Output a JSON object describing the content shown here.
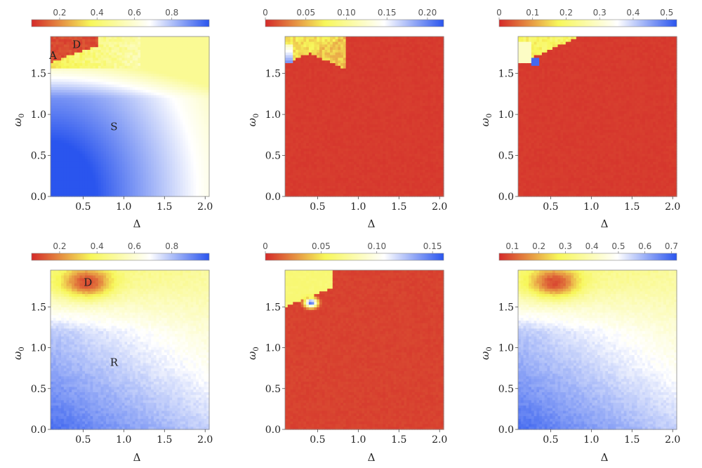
{
  "colors": {
    "colormap": [
      "#d42a2a",
      "#f7f75a",
      "#ffffff",
      "#2a55ee"
    ],
    "frame": "#888888"
  },
  "chart_data": [
    {
      "type": "heatmap",
      "row": 0,
      "col": 0,
      "xlabel": "Δ",
      "ylabel": "ω0",
      "xlim": [
        0.1,
        2.05
      ],
      "ylim": [
        0.0,
        1.95
      ],
      "xticks": [
        0.5,
        1.0,
        1.5,
        2.0
      ],
      "yticks": [
        0.0,
        0.5,
        1.0,
        1.5
      ],
      "colorbar": {
        "range": [
          0.05,
          1.0
        ],
        "ticks": [
          0.2,
          0.4,
          0.6,
          0.8
        ],
        "labels": [
          "0.2",
          "0.4",
          "0.6",
          "0.8"
        ]
      },
      "field": "stability",
      "annotations": [
        {
          "text": "A",
          "x": 0.13,
          "y": 1.72
        },
        {
          "text": "D",
          "x": 0.42,
          "y": 1.85
        },
        {
          "text": "S",
          "x": 0.88,
          "y": 0.85
        }
      ]
    },
    {
      "type": "heatmap",
      "row": 0,
      "col": 1,
      "xlabel": "Δ",
      "ylabel": "ω0",
      "xlim": [
        0.1,
        2.05
      ],
      "ylim": [
        0.0,
        1.95
      ],
      "xticks": [
        0.5,
        1.0,
        1.5,
        2.0
      ],
      "yticks": [
        0.0,
        0.5,
        1.0,
        1.5
      ],
      "colorbar": {
        "range": [
          0.0,
          0.22
        ],
        "ticks": [
          0.0,
          0.05,
          0.1,
          0.15,
          0.2
        ],
        "labels": [
          "0",
          "0.05",
          "0.10",
          "0.15",
          "0.20"
        ]
      },
      "field": "stepCorner",
      "annotations": []
    },
    {
      "type": "heatmap",
      "row": 0,
      "col": 2,
      "xlabel": "Δ",
      "ylabel": "ω0",
      "xlim": [
        0.1,
        2.05
      ],
      "ylim": [
        0.0,
        1.95
      ],
      "xticks": [
        0.5,
        1.0,
        1.5,
        2.0
      ],
      "yticks": [
        0.0,
        0.5,
        1.0,
        1.5
      ],
      "colorbar": {
        "range": [
          0.0,
          0.53
        ],
        "ticks": [
          0.0,
          0.1,
          0.2,
          0.3,
          0.4,
          0.5
        ],
        "labels": [
          "0",
          "0.1",
          "0.2",
          "0.3",
          "0.4",
          "0.5"
        ]
      },
      "field": "stepCorner2",
      "annotations": []
    },
    {
      "type": "heatmap",
      "row": 1,
      "col": 0,
      "xlabel": "Δ",
      "ylabel": "ω0",
      "xlim": [
        0.1,
        2.05
      ],
      "ylim": [
        0.0,
        1.95
      ],
      "xticks": [
        0.5,
        1.0,
        1.5,
        2.0
      ],
      "yticks": [
        0.0,
        0.5,
        1.0,
        1.5
      ],
      "colorbar": {
        "range": [
          0.05,
          1.0
        ],
        "ticks": [
          0.2,
          0.4,
          0.6,
          0.8
        ],
        "labels": [
          "0.2",
          "0.4",
          "0.6",
          "0.8"
        ]
      },
      "field": "smoothBlob",
      "annotations": [
        {
          "text": "D",
          "x": 0.56,
          "y": 1.8
        },
        {
          "text": "R",
          "x": 0.88,
          "y": 0.82
        }
      ]
    },
    {
      "type": "heatmap",
      "row": 1,
      "col": 1,
      "xlabel": "Δ",
      "ylabel": "ω0",
      "xlim": [
        0.1,
        2.05
      ],
      "ylim": [
        0.0,
        1.95
      ],
      "xticks": [
        0.5,
        1.0,
        1.5,
        2.0
      ],
      "yticks": [
        0.0,
        0.5,
        1.0,
        1.5
      ],
      "colorbar": {
        "range": [
          0.0,
          0.16
        ],
        "ticks": [
          0.0,
          0.05,
          0.1,
          0.15
        ],
        "labels": [
          "0",
          "0.05",
          "0.10",
          "0.15"
        ]
      },
      "field": "blueSpot",
      "annotations": []
    },
    {
      "type": "heatmap",
      "row": 1,
      "col": 2,
      "xlabel": "Δ",
      "ylabel": "ω0",
      "xlim": [
        0.1,
        2.05
      ],
      "ylim": [
        0.0,
        1.95
      ],
      "xticks": [
        0.5,
        1.0,
        1.5,
        2.0
      ],
      "yticks": [
        0.0,
        0.5,
        1.0,
        1.5
      ],
      "colorbar": {
        "range": [
          0.05,
          0.72
        ],
        "ticks": [
          0.1,
          0.2,
          0.3,
          0.4,
          0.5,
          0.6,
          0.7
        ],
        "labels": [
          "0.1",
          "0.2",
          "0.3",
          "0.4",
          "0.5",
          "0.6",
          "0.7"
        ]
      },
      "field": "smoothBlob",
      "annotations": []
    }
  ]
}
